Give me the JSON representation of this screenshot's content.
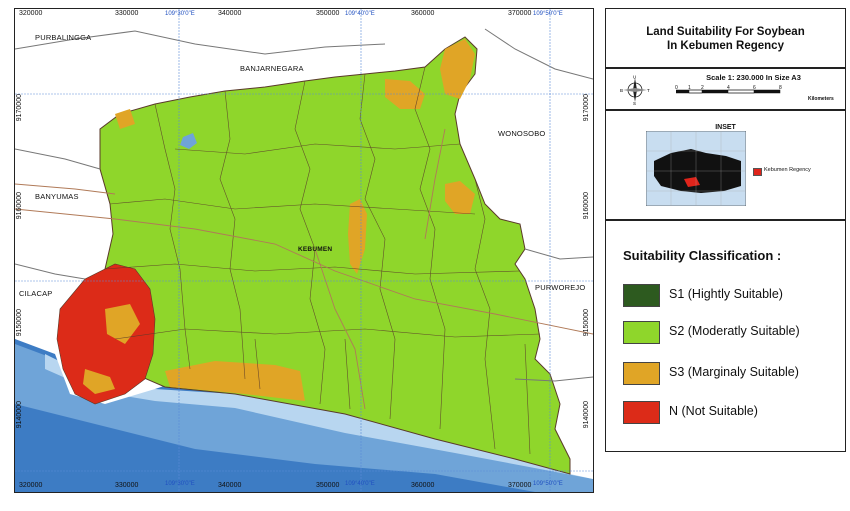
{
  "map": {
    "coords_top": [
      "320000",
      "330000",
      "340000",
      "350000",
      "360000",
      "370000"
    ],
    "coords_bottom": [
      "320000",
      "330000",
      "340000",
      "350000",
      "360000",
      "370000"
    ],
    "coords_left": [
      "9170000",
      "9160000",
      "9150000",
      "9140000"
    ],
    "coords_right": [
      "9170000",
      "9160000",
      "9150000",
      "9140000"
    ],
    "geo_top": [
      "109°30'0\"E",
      "109°40'0\"E",
      "109°50'0\"E"
    ],
    "geo_bottom": [
      "109°30'0\"E",
      "109°40'0\"E",
      "109°50'0\"E"
    ],
    "regions": {
      "purbalingga": "PURBALINGGA",
      "banjarnegara": "BANJARNEGARA",
      "wonosobo": "WONOSOBO",
      "banyumas": "BANYUMAS",
      "cilacap": "CILACAP",
      "purworejo": "PURWOREJO",
      "kebumen": "KEBUMEN"
    },
    "colors": {
      "sea_deep": "#3d7cc4",
      "sea_mid": "#6fa4d8",
      "sea_light": "#b8d6f0",
      "s1": "#2d5a1f",
      "s2": "#8fd62b",
      "s3": "#e0a526",
      "n": "#dc2b18",
      "background": "#ffffff",
      "boundary": "#5a3a2a",
      "road": "#b07a58"
    }
  },
  "title": {
    "line1": "Land Suitability For Soybean",
    "line2": "In Kebumen Regency"
  },
  "scale": {
    "text": "Scale 1: 230.000 In Size A3",
    "ticks": [
      "0",
      "1",
      "2",
      "4",
      "6",
      "8"
    ],
    "unit": "Kilometers"
  },
  "inset": {
    "title": "INSET",
    "legend_label": "Kebumen Regency"
  },
  "legend": {
    "title": "Suitability Classification :",
    "items": [
      {
        "label": "S1 (Hightly Suitable)",
        "color": "#2d5a1f"
      },
      {
        "label": "S2 (Moderatly Suitable)",
        "color": "#8fd62b"
      },
      {
        "label": "S3 (Marginaly Suitable)",
        "color": "#e0a526"
      },
      {
        "label": "N (Not Suitable)",
        "color": "#dc2b18"
      }
    ]
  }
}
